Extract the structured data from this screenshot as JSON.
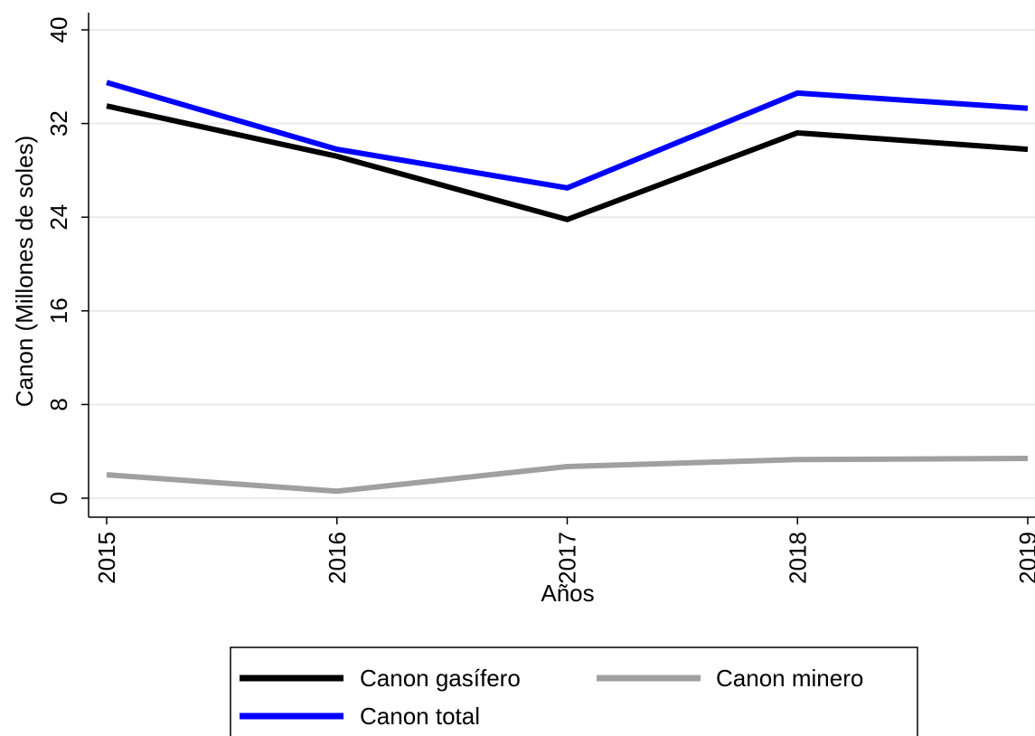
{
  "chart_data": {
    "type": "line",
    "title": "",
    "xlabel": "Años",
    "ylabel": "Canon  (Millones de soles)",
    "x": [
      2015,
      2016,
      2017,
      2018,
      2019
    ],
    "x_ticks": [
      "2015",
      "2016",
      "2017",
      "2018",
      "2019"
    ],
    "xlim": [
      2015,
      2019
    ],
    "ylim": [
      0,
      40
    ],
    "y_ticks": [
      0,
      8,
      16,
      24,
      32,
      40
    ],
    "y_tick_labels": [
      "0",
      "8",
      "16",
      "24",
      "32",
      "40"
    ],
    "grid": true,
    "legend_position": "bottom",
    "series": [
      {
        "name": "Canon gasífero",
        "color": "#000000",
        "values": [
          33.5,
          29.2,
          23.8,
          31.2,
          29.8
        ]
      },
      {
        "name": "Canon minero",
        "color": "#a0a0a0",
        "values": [
          2.0,
          0.6,
          2.7,
          3.3,
          3.4
        ]
      },
      {
        "name": "Canon total",
        "color": "#0000ff",
        "values": [
          35.5,
          29.8,
          26.5,
          34.6,
          33.3
        ]
      }
    ]
  }
}
